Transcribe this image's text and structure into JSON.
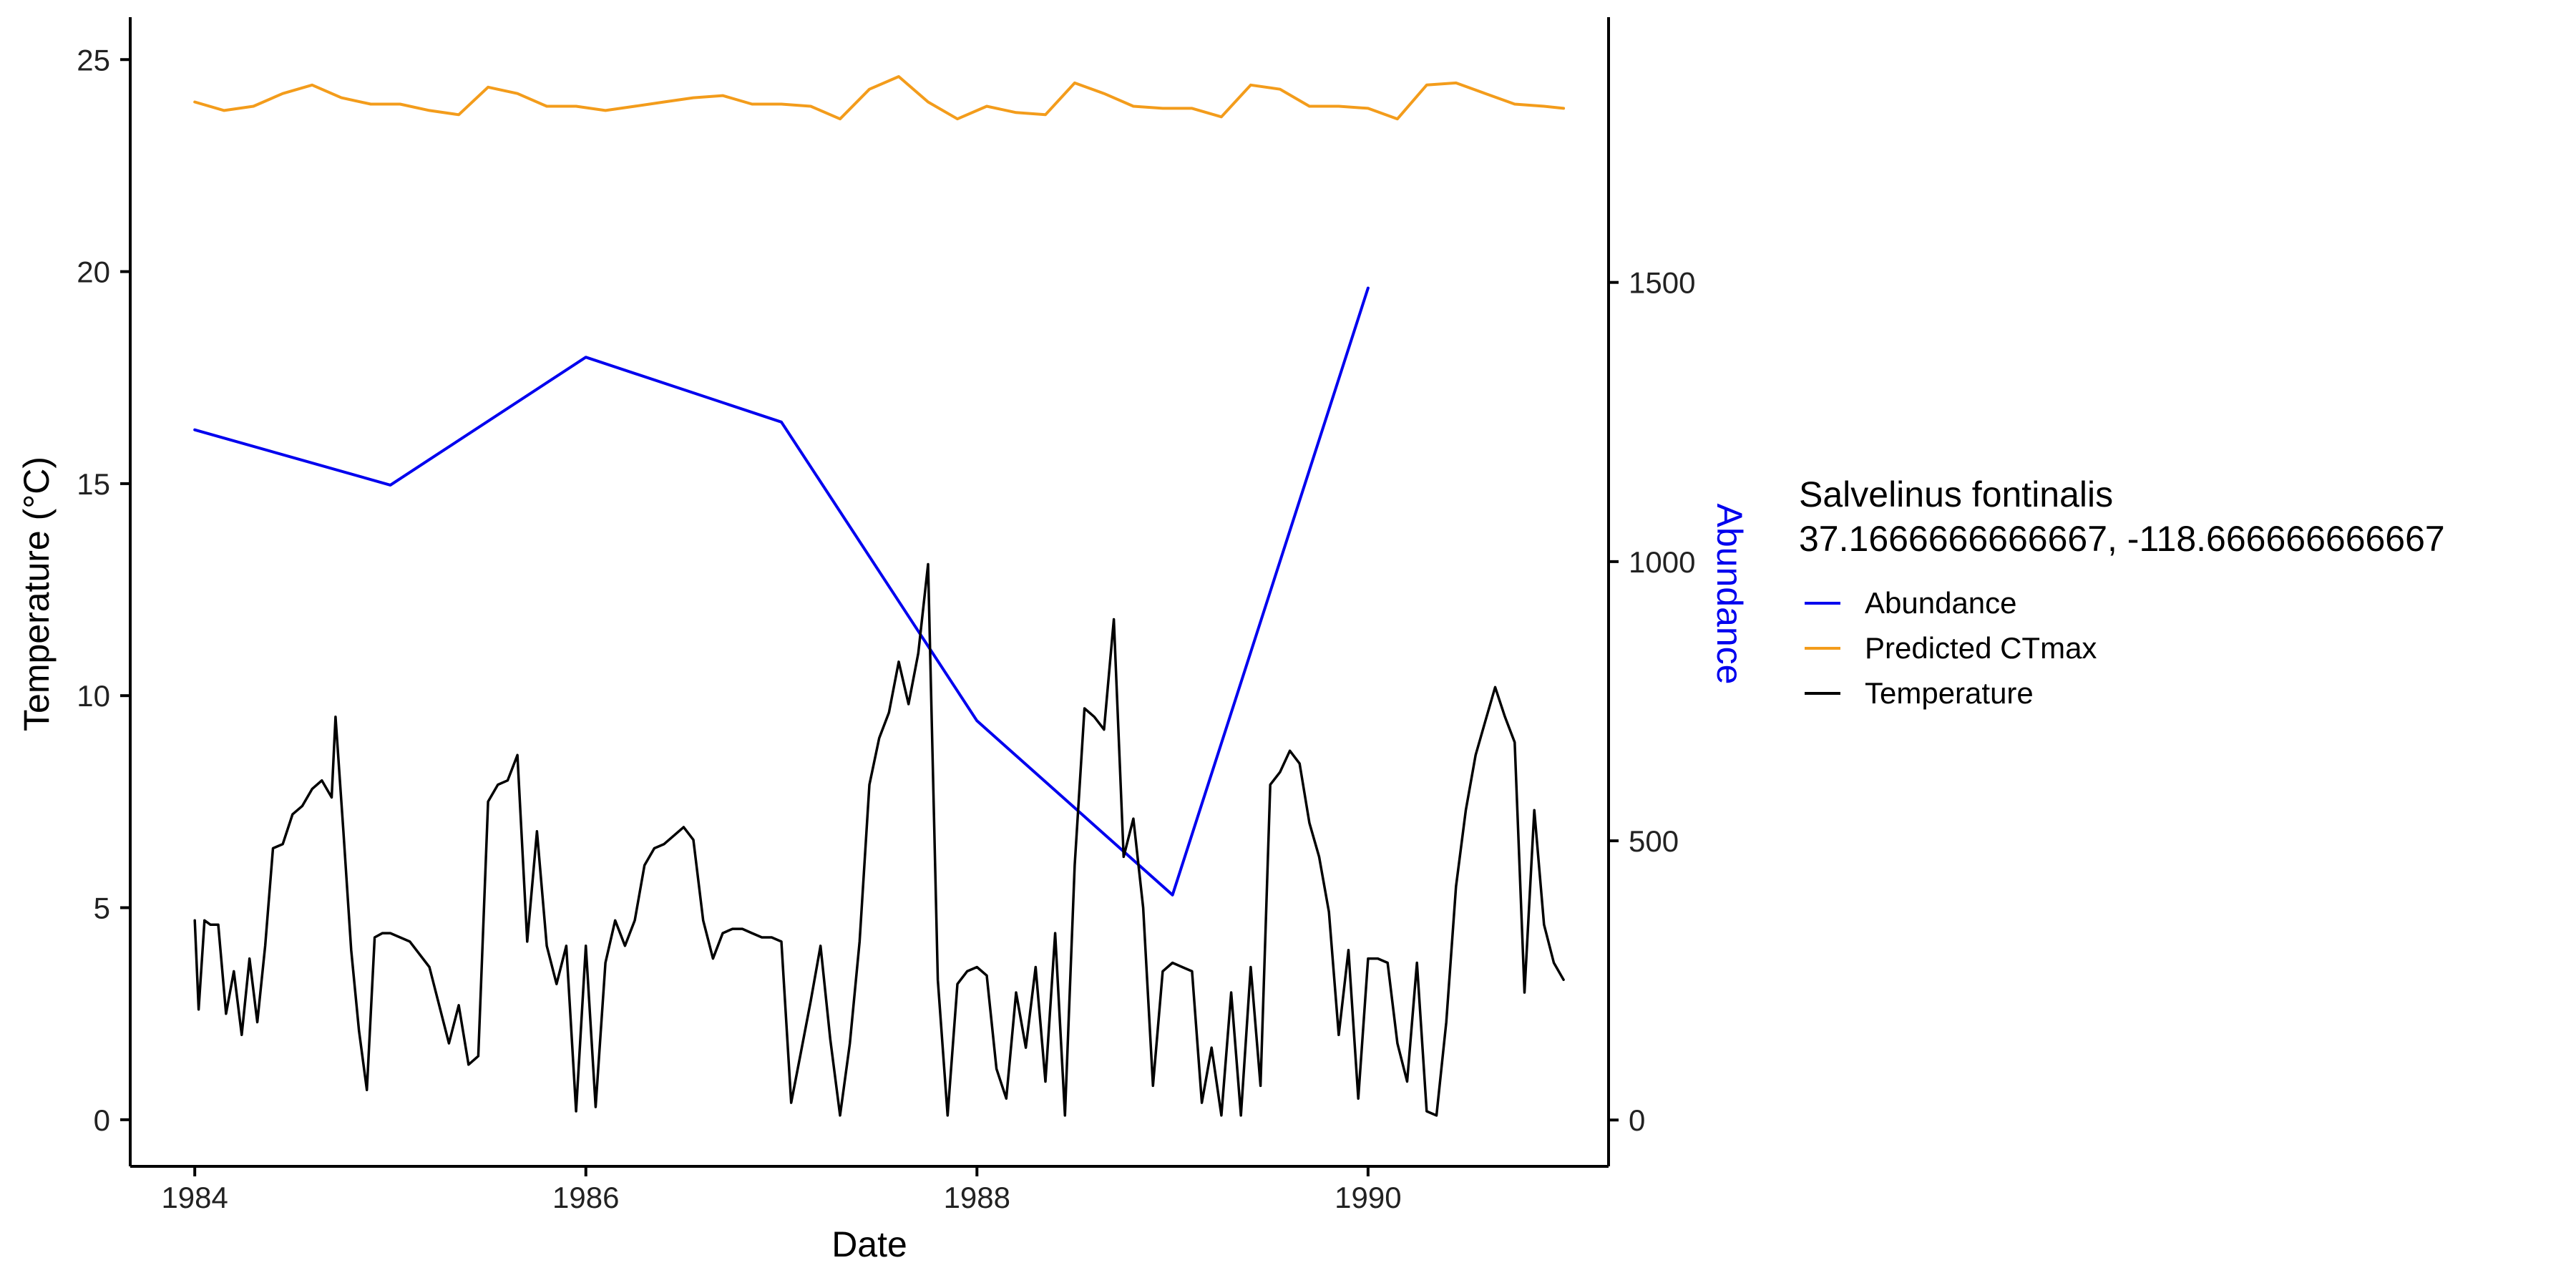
{
  "chart_data": {
    "type": "line",
    "xlabel": "Date",
    "ylabel": "Temperature (°C)",
    "y2label": "Abundance",
    "xlim": [
      1983.67,
      1991.23
    ],
    "ylim": [
      -1.1,
      26.0
    ],
    "y2lim": [
      -83,
      1975
    ],
    "x_ticks": [
      1984,
      1986,
      1988,
      1990
    ],
    "y_ticks": [
      0,
      5,
      10,
      15,
      20,
      25
    ],
    "y2_ticks": [
      0,
      500,
      1000,
      1500
    ],
    "grid": false,
    "legend": {
      "placement": "right",
      "title_lines": [
        "Salvelinus fontinalis",
        "37.1666666666667, -118.666666666667"
      ],
      "entries": [
        {
          "name": "Abundance",
          "color": "#0000ee"
        },
        {
          "name": "Predicted CTmax",
          "color": "#f39c1b"
        },
        {
          "name": "Temperature",
          "color": "#000000"
        }
      ]
    },
    "series": [
      {
        "name": "Abundance",
        "axis": "right",
        "color": "#0000ee",
        "x": [
          1984,
          1985,
          1986,
          1987,
          1988,
          1989,
          1990
        ],
        "y": [
          1236,
          1137,
          1366,
          1250,
          715,
          403,
          1490
        ]
      },
      {
        "name": "Predicted CTmax",
        "axis": "left",
        "color": "#f39c1b",
        "x": [
          1984.0,
          1984.15,
          1984.3,
          1984.45,
          1984.6,
          1984.75,
          1984.9,
          1985.05,
          1985.2,
          1985.35,
          1985.5,
          1985.65,
          1985.8,
          1985.95,
          1986.1,
          1986.25,
          1986.4,
          1986.55,
          1986.7,
          1986.85,
          1987.0,
          1987.15,
          1987.3,
          1987.45,
          1987.6,
          1987.75,
          1987.9,
          1988.05,
          1988.2,
          1988.35,
          1988.5,
          1988.65,
          1988.8,
          1988.95,
          1989.1,
          1989.25,
          1989.4,
          1989.55,
          1989.7,
          1989.85,
          1990.0,
          1990.15,
          1990.3,
          1990.45,
          1990.6,
          1990.75,
          1990.9,
          1991.0
        ],
        "y": [
          24.0,
          23.8,
          23.9,
          24.2,
          24.4,
          24.1,
          23.95,
          23.95,
          23.8,
          23.7,
          24.35,
          24.2,
          23.9,
          23.9,
          23.8,
          23.9,
          24.0,
          24.1,
          24.15,
          23.95,
          23.95,
          23.9,
          23.6,
          24.3,
          24.6,
          24.0,
          23.6,
          23.9,
          23.75,
          23.7,
          24.45,
          24.2,
          23.9,
          23.85,
          23.85,
          23.65,
          24.4,
          24.3,
          23.9,
          23.9,
          23.85,
          23.6,
          24.4,
          24.45,
          24.2,
          23.95,
          23.9,
          23.85
        ]
      },
      {
        "name": "Temperature",
        "axis": "left",
        "color": "#000000",
        "x": [
          1984.0,
          1984.02,
          1984.05,
          1984.08,
          1984.12,
          1984.16,
          1984.2,
          1984.24,
          1984.28,
          1984.32,
          1984.36,
          1984.4,
          1984.45,
          1984.5,
          1984.55,
          1984.6,
          1984.65,
          1984.7,
          1984.72,
          1984.76,
          1984.8,
          1984.84,
          1984.88,
          1984.92,
          1984.96,
          1985.0,
          1985.1,
          1985.2,
          1985.3,
          1985.35,
          1985.4,
          1985.45,
          1985.5,
          1985.55,
          1985.6,
          1985.65,
          1985.7,
          1985.75,
          1985.8,
          1985.85,
          1985.9,
          1985.95,
          1986.0,
          1986.05,
          1986.1,
          1986.15,
          1986.2,
          1986.25,
          1986.3,
          1986.35,
          1986.4,
          1986.45,
          1986.5,
          1986.55,
          1986.6,
          1986.65,
          1986.7,
          1986.75,
          1986.8,
          1986.85,
          1986.9,
          1986.95,
          1987.0,
          1987.05,
          1987.1,
          1987.15,
          1987.2,
          1987.25,
          1987.3,
          1987.35,
          1987.4,
          1987.45,
          1987.5,
          1987.55,
          1987.6,
          1987.65,
          1987.7,
          1987.75,
          1987.8,
          1987.85,
          1987.9,
          1987.95,
          1988.0,
          1988.05,
          1988.1,
          1988.15,
          1988.2,
          1988.25,
          1988.3,
          1988.35,
          1988.4,
          1988.45,
          1988.5,
          1988.55,
          1988.6,
          1988.65,
          1988.7,
          1988.75,
          1988.8,
          1988.85,
          1988.9,
          1988.95,
          1989.0,
          1989.05,
          1989.1,
          1989.15,
          1989.2,
          1989.25,
          1989.3,
          1989.35,
          1989.4,
          1989.45,
          1989.5,
          1989.55,
          1989.6,
          1989.65,
          1989.7,
          1989.75,
          1989.8,
          1989.85,
          1989.9,
          1989.95,
          1990.0,
          1990.05,
          1990.1,
          1990.15,
          1990.2,
          1990.25,
          1990.3,
          1990.35,
          1990.4,
          1990.45,
          1990.5,
          1990.55,
          1990.6,
          1990.65,
          1990.7,
          1990.75,
          1990.8,
          1990.85,
          1990.9,
          1990.95,
          1991.0
        ],
        "y": [
          4.7,
          2.6,
          4.7,
          4.6,
          4.6,
          2.5,
          3.5,
          2.0,
          3.8,
          2.3,
          4.1,
          6.4,
          6.5,
          7.2,
          7.4,
          7.8,
          8.0,
          7.6,
          9.5,
          6.8,
          4.0,
          2.1,
          0.7,
          4.3,
          4.4,
          4.4,
          4.2,
          3.6,
          1.8,
          2.7,
          1.3,
          1.5,
          7.5,
          7.9,
          8.0,
          8.6,
          4.2,
          6.8,
          4.1,
          3.2,
          4.1,
          0.2,
          4.1,
          0.3,
          3.7,
          4.7,
          4.1,
          4.7,
          6.0,
          6.4,
          6.5,
          6.7,
          6.9,
          6.6,
          4.7,
          3.8,
          4.4,
          4.5,
          4.5,
          4.4,
          4.3,
          4.3,
          4.2,
          0.4,
          1.6,
          2.8,
          4.1,
          1.9,
          0.1,
          1.8,
          4.2,
          7.9,
          9.0,
          9.6,
          10.8,
          9.8,
          11.0,
          13.1,
          3.3,
          0.1,
          3.2,
          3.5,
          3.6,
          3.4,
          1.2,
          0.5,
          3.0,
          1.7,
          3.6,
          0.9,
          4.4,
          0.1,
          6.0,
          9.7,
          9.5,
          9.2,
          11.8,
          6.2,
          7.1,
          5.0,
          0.8,
          3.5,
          3.7,
          3.6,
          3.5,
          0.4,
          1.7,
          0.1,
          3.0,
          0.1,
          3.6,
          0.8,
          7.9,
          8.2,
          8.7,
          8.4,
          7.0,
          6.2,
          4.9,
          2.0,
          4.0,
          0.5,
          3.8,
          3.8,
          3.7,
          1.8,
          0.9,
          3.7,
          0.2,
          0.1,
          2.3,
          5.5,
          7.3,
          8.6,
          9.4,
          10.2,
          9.5,
          8.9,
          3.0,
          7.3,
          4.6,
          3.7,
          3.3
        ]
      }
    ]
  }
}
